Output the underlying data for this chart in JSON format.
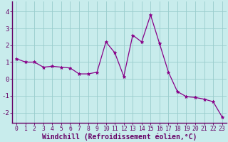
{
  "x": [
    0,
    1,
    2,
    3,
    4,
    5,
    6,
    7,
    8,
    9,
    10,
    11,
    12,
    13,
    14,
    15,
    16,
    17,
    18,
    19,
    20,
    21,
    22,
    23
  ],
  "y": [
    1.2,
    1.0,
    1.0,
    0.7,
    0.75,
    0.7,
    0.65,
    0.3,
    0.3,
    0.4,
    2.2,
    1.55,
    0.15,
    2.6,
    2.2,
    3.8,
    2.1,
    0.4,
    -0.75,
    -1.05,
    -1.1,
    -1.2,
    -1.35,
    -2.25
  ],
  "line_color": "#880088",
  "marker": "*",
  "marker_size": 3.5,
  "bg_color": "#c8ecec",
  "grid_color": "#99cccc",
  "xlabel": "Windchill (Refroidissement éolien,°C)",
  "xlim": [
    -0.5,
    23.5
  ],
  "ylim": [
    -2.6,
    4.6
  ],
  "yticks": [
    -2,
    -1,
    0,
    1,
    2,
    3,
    4
  ],
  "xtick_labels": [
    "0",
    "1",
    "2",
    "3",
    "4",
    "5",
    "6",
    "7",
    "8",
    "9",
    "10",
    "11",
    "12",
    "13",
    "14",
    "15",
    "16",
    "17",
    "18",
    "19",
    "20",
    "21",
    "22",
    "23"
  ],
  "axis_color": "#660066",
  "tick_color": "#660066",
  "xlabel_color": "#660066",
  "xlabel_fontsize": 7.0,
  "tick_fontsize": 5.8,
  "ytick_fontsize": 6.5
}
